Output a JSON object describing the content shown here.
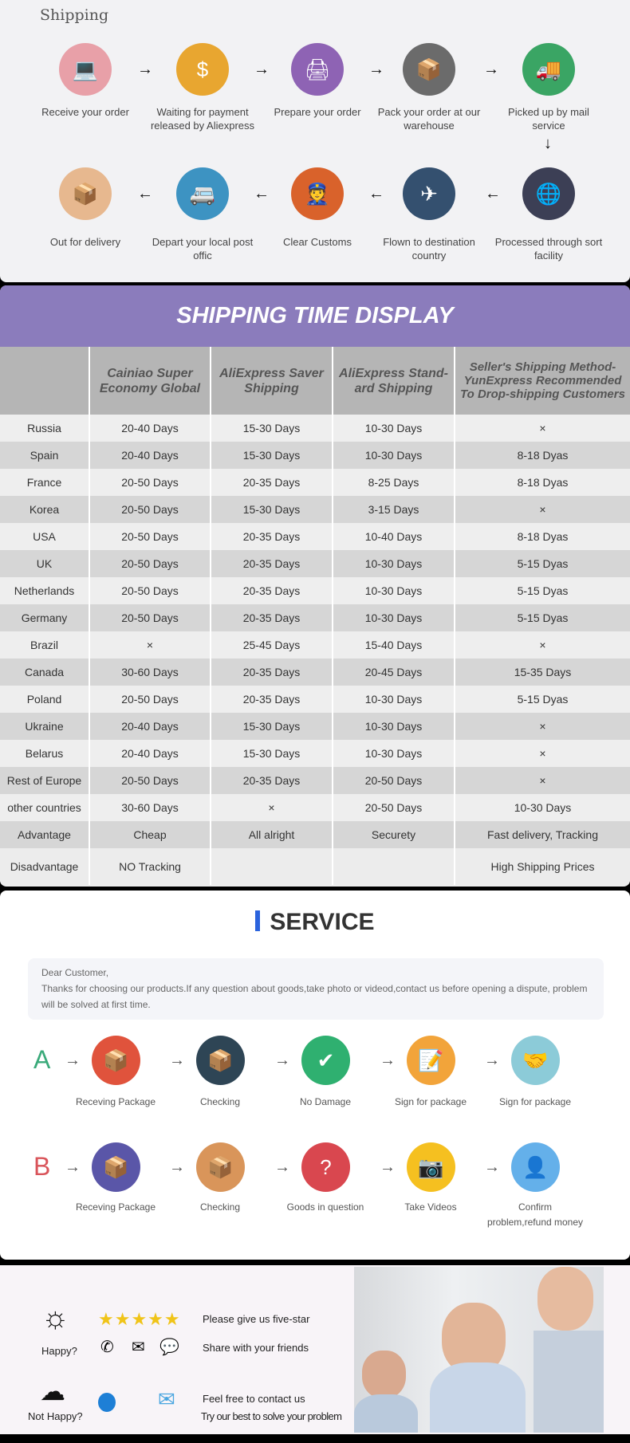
{
  "shipping": {
    "title": "Shipping",
    "steps": [
      {
        "label": "Receive your order",
        "icon": "person-laptop-icon",
        "color": "#e8a0a8"
      },
      {
        "label": "Waiting for payment released by Aliexpress",
        "icon": "money-bag-icon",
        "color": "#e8a630"
      },
      {
        "label": "Prepare your order",
        "icon": "printer-icon",
        "color": "#8e63b4"
      },
      {
        "label": "Pack your order at our warehouse",
        "icon": "package-icon",
        "color": "#6b6b6b"
      },
      {
        "label": "Picked up by mail service",
        "icon": "truck-icon",
        "color": "#3aa564"
      },
      {
        "label": "Processed through sort facility",
        "icon": "globe-icon",
        "color": "#3c3f55"
      },
      {
        "label": "Flown to destination country",
        "icon": "airplane-icon",
        "color": "#34506f"
      },
      {
        "label": "Clear  Customs",
        "icon": "customs-officer-icon",
        "color": "#d9622b"
      },
      {
        "label": "Depart your local post offic",
        "icon": "van-icon",
        "color": "#3d93c2"
      },
      {
        "label": "Out for delivery",
        "icon": "box-icon",
        "color": "#e7b88f"
      }
    ]
  },
  "table": {
    "title": "SHIPPING TIME DISPLAY",
    "headers": [
      "",
      "Cainiao Super Economy Global",
      "AliExpress Saver Shipping",
      "AliExpress Stand-ard Shipping",
      "Seller's Shipping Method-YunExpress Recommended To Drop-shipping Customers"
    ],
    "rows": [
      [
        "Russia",
        "20-40 Days",
        "15-30 Days",
        "10-30 Days",
        "×"
      ],
      [
        "Spain",
        "20-40 Days",
        "15-30 Days",
        "10-30 Days",
        "8-18 Dyas"
      ],
      [
        "France",
        "20-50 Days",
        "20-35 Days",
        "8-25 Days",
        "8-18 Dyas"
      ],
      [
        "Korea",
        "20-50 Days",
        "15-30 Days",
        "3-15 Days",
        "×"
      ],
      [
        "USA",
        "20-50 Days",
        "20-35 Days",
        "10-40 Days",
        "8-18 Dyas"
      ],
      [
        "UK",
        "20-50 Days",
        "20-35 Days",
        "10-30 Days",
        "5-15 Dyas"
      ],
      [
        "Netherlands",
        "20-50 Days",
        "20-35 Days",
        "10-30 Days",
        "5-15 Dyas"
      ],
      [
        "Germany",
        "20-50 Days",
        "20-35 Days",
        "10-30 Days",
        "5-15 Dyas"
      ],
      [
        "Brazil",
        "×",
        "25-45 Days",
        "15-40 Days",
        "×"
      ],
      [
        "Canada",
        "30-60 Days",
        "20-35 Days",
        "20-45 Days",
        "15-35 Days"
      ],
      [
        "Poland",
        "20-50 Days",
        "20-35 Days",
        "10-30 Days",
        "5-15 Dyas"
      ],
      [
        "Ukraine",
        "20-40 Days",
        "15-30 Days",
        "10-30 Days",
        "×"
      ],
      [
        "Belarus",
        "20-40 Days",
        "15-30 Days",
        "10-30 Days",
        "×"
      ],
      [
        "Rest of Europe",
        "20-50 Days",
        "20-35 Days",
        "20-50 Days",
        "×"
      ],
      [
        "other countries",
        "30-60 Days",
        "×",
        "20-50 Days",
        "10-30 Days"
      ],
      [
        "Advantage",
        "Cheap",
        "All alright",
        "Securety",
        "Fast delivery, Tracking"
      ],
      [
        "Disadvantage",
        "NO Tracking",
        "",
        "",
        "High Shipping Prices"
      ]
    ]
  },
  "service": {
    "title": "SERVICE",
    "message": [
      "Dear Customer,",
      "Thanks for choosing our products.If any question about goods,take photo or videod,contact us before opening a dispute, problem will be solved at first time."
    ],
    "rowA": {
      "letter": "A",
      "color": "#3aaa7a",
      "steps": [
        {
          "label": "Receving Package",
          "icon": "package-icon",
          "color": "#e0533c"
        },
        {
          "label": "Checking",
          "icon": "open-box-icon",
          "color": "#2e4555"
        },
        {
          "label": "No Damage",
          "icon": "checkmark-icon",
          "color": "#2fb070"
        },
        {
          "label": "Sign for package",
          "icon": "document-pen-icon",
          "color": "#f2a43a"
        },
        {
          "label": "Sign for package",
          "icon": "handshake-icon",
          "color": "#8ccbd8"
        }
      ]
    },
    "rowB": {
      "letter": "B",
      "color": "#d9545a",
      "steps": [
        {
          "label": "Receving Package",
          "icon": "package-icon",
          "color": "#5a56a8"
        },
        {
          "label": "Checking",
          "icon": "open-box-icon",
          "color": "#d9955a"
        },
        {
          "label": "Goods in question",
          "icon": "question-box-icon",
          "color": "#d9474f"
        },
        {
          "label": "Take Videos",
          "icon": "camera-icon",
          "color": "#f5c020"
        },
        {
          "label": "Confirm problem,refund money",
          "icon": "support-person-icon",
          "color": "#64b0ea"
        }
      ]
    }
  },
  "feedback": {
    "happy": "Happy?",
    "not_happy": "Not Happy?",
    "five_star": "Please give us five-star",
    "share": "Share with your friends",
    "contact": "Feel free to contact us",
    "solve": "Try our best to solve your problem",
    "stars": 5
  }
}
